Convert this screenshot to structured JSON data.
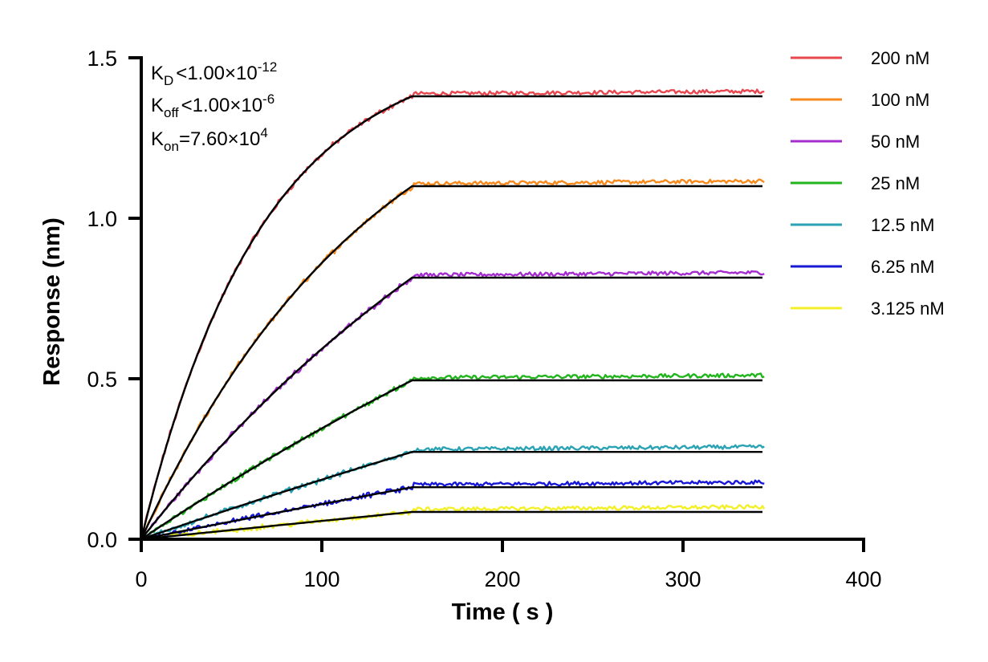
{
  "chart_data": {
    "type": "line",
    "title": "",
    "xlabel": "Time ( s )",
    "ylabel": "Response (nm)",
    "xlim": [
      0,
      400
    ],
    "ylim": [
      0,
      1.5
    ],
    "x_ticks": [
      "0",
      "100",
      "200",
      "300",
      "400"
    ],
    "y_ticks": [
      "0.0",
      "0.5",
      "1.0",
      "1.5"
    ],
    "grid": false,
    "legend_position": "top-right",
    "association_end_s": 150,
    "end_time_s": 345,
    "series": [
      {
        "name": "200 nM",
        "color": "#e8474f",
        "plateau": 1.38,
        "kobs": 0.015
      },
      {
        "name": "100 nM",
        "color": "#f78a1d",
        "plateau": 1.1,
        "kobs": 0.0076
      },
      {
        "name": "50 nM",
        "color": "#a52ccf",
        "plateau": 0.815,
        "kobs": 0.0038
      },
      {
        "name": "25 nM",
        "color": "#22b51e",
        "plateau": 0.495,
        "kobs": 0.0019
      },
      {
        "name": "12.5 nM",
        "color": "#2ba3b4",
        "plateau": 0.272,
        "kobs": 0.00095
      },
      {
        "name": "6.25 nM",
        "color": "#1717d6",
        "plateau": 0.162,
        "kobs": 0.00048
      },
      {
        "name": "3.125 nM",
        "color": "#f3f02a",
        "plateau": 0.085,
        "kobs": 0.00024
      }
    ],
    "fit_color": "#000000",
    "annotations": {
      "kd": {
        "base": "K",
        "sub": "D",
        "rel": "<",
        "value": "1.00×10",
        "exp": "-12"
      },
      "koff": {
        "base": "K",
        "sub": "off",
        "rel": "<",
        "value": "1.00×10",
        "exp": "-6"
      },
      "kon": {
        "base": "K",
        "sub": "on",
        "rel": "=",
        "value": "7.60×10",
        "exp": "4"
      }
    }
  }
}
